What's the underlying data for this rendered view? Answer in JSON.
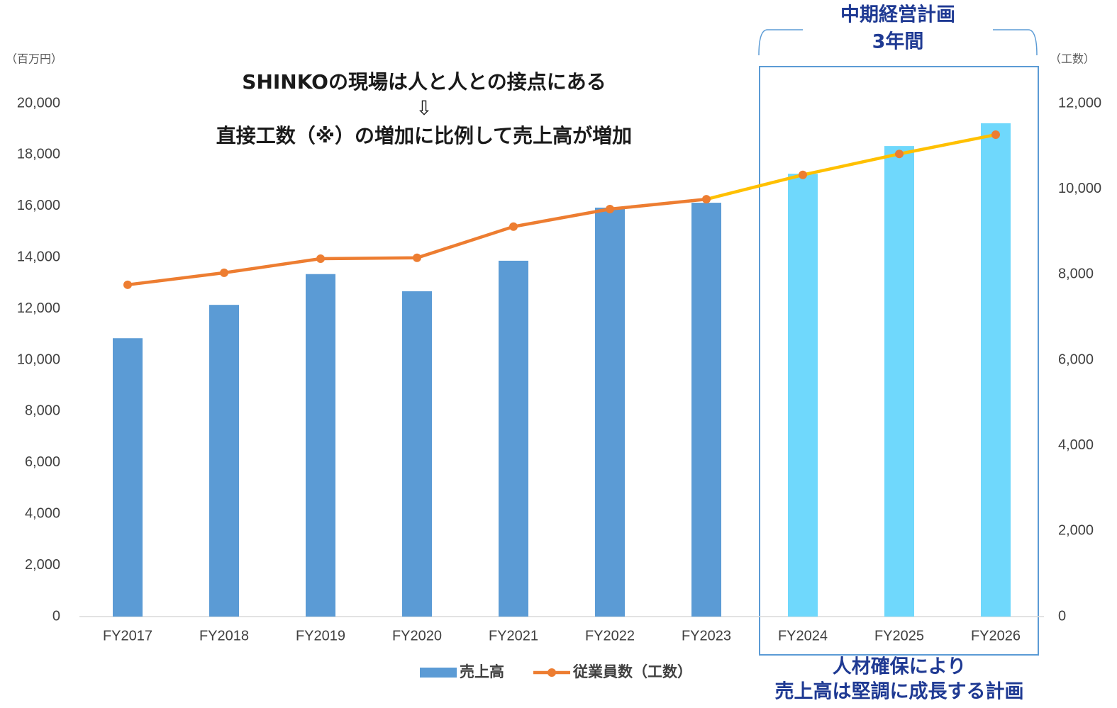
{
  "chart_data": {
    "type": "bar_line",
    "annotations": [
      "SHINKOの現場は人と人との接点にある",
      "⇩",
      "直接工数（※）の増加に比例して売上高が増加",
      "中期経営計画",
      "3年間",
      "人材確保により",
      "売上高は堅調に成長する計画"
    ],
    "y_label": "（百万円）",
    "y2_label": "（工数）",
    "categories": [
      "FY2017",
      "FY2018",
      "FY2019",
      "FY2020",
      "FY2021",
      "FY2022",
      "FY2023",
      "FY2024",
      "FY2025",
      "FY2026"
    ],
    "series": [
      {
        "name": "売上高",
        "type": "bar",
        "color": "#5b9bd5",
        "colors": [
          "#5b9bd5",
          "#5b9bd5",
          "#5b9bd5",
          "#5b9bd5",
          "#5b9bd5",
          "#5b9bd5",
          "#5b9bd5",
          "#6fd8fc",
          "#6fd8fc",
          "#6fd8fc"
        ],
        "values": [
          10850,
          12150,
          13350,
          12680,
          13870,
          15940,
          16130,
          17260,
          18340,
          19230
        ]
      },
      {
        "name": "従業員数（工数）",
        "type": "line",
        "axis": "y2",
        "color": "#ed7d31",
        "segment_colors": [
          "#ed7d31",
          "#ed7d31",
          "#ed7d31",
          "#ed7d31",
          "#ed7d31",
          "#ed7d31",
          "#ffc000",
          "#ffc000",
          "#ffc000"
        ],
        "values": [
          7760,
          8040,
          8370,
          8390,
          9120,
          9530,
          9760,
          10330,
          10820,
          11270
        ]
      }
    ],
    "ylim": [
      0,
      20000
    ],
    "yticks": [
      0,
      {
        "value": 2000,
        "label": "2,000"
      },
      {
        "value": 4000,
        "label": "4,000"
      },
      {
        "value": 6000,
        "label": "6,000"
      },
      {
        "value": 8000,
        "label": "8,000"
      },
      {
        "value": 10000,
        "label": "10,000"
      },
      {
        "value": 12000,
        "label": "12,000"
      },
      {
        "value": 14000,
        "label": "14,000"
      },
      {
        "value": 16000,
        "label": "16,000"
      },
      {
        "value": 18000,
        "label": "18,000"
      },
      {
        "value": 20000,
        "label": "20,000"
      }
    ],
    "y2lim": [
      0,
      12000
    ],
    "y2ticks": [
      0,
      {
        "value": 2000,
        "label": "2,000"
      },
      {
        "value": 4000,
        "label": "4,000"
      },
      {
        "value": 6000,
        "label": "6,000"
      },
      {
        "value": 8000,
        "label": "8,000"
      },
      {
        "value": 10000,
        "label": "10,000"
      },
      {
        "value": 12000,
        "label": "12,000"
      }
    ],
    "grid": false,
    "legend": "bottom"
  }
}
